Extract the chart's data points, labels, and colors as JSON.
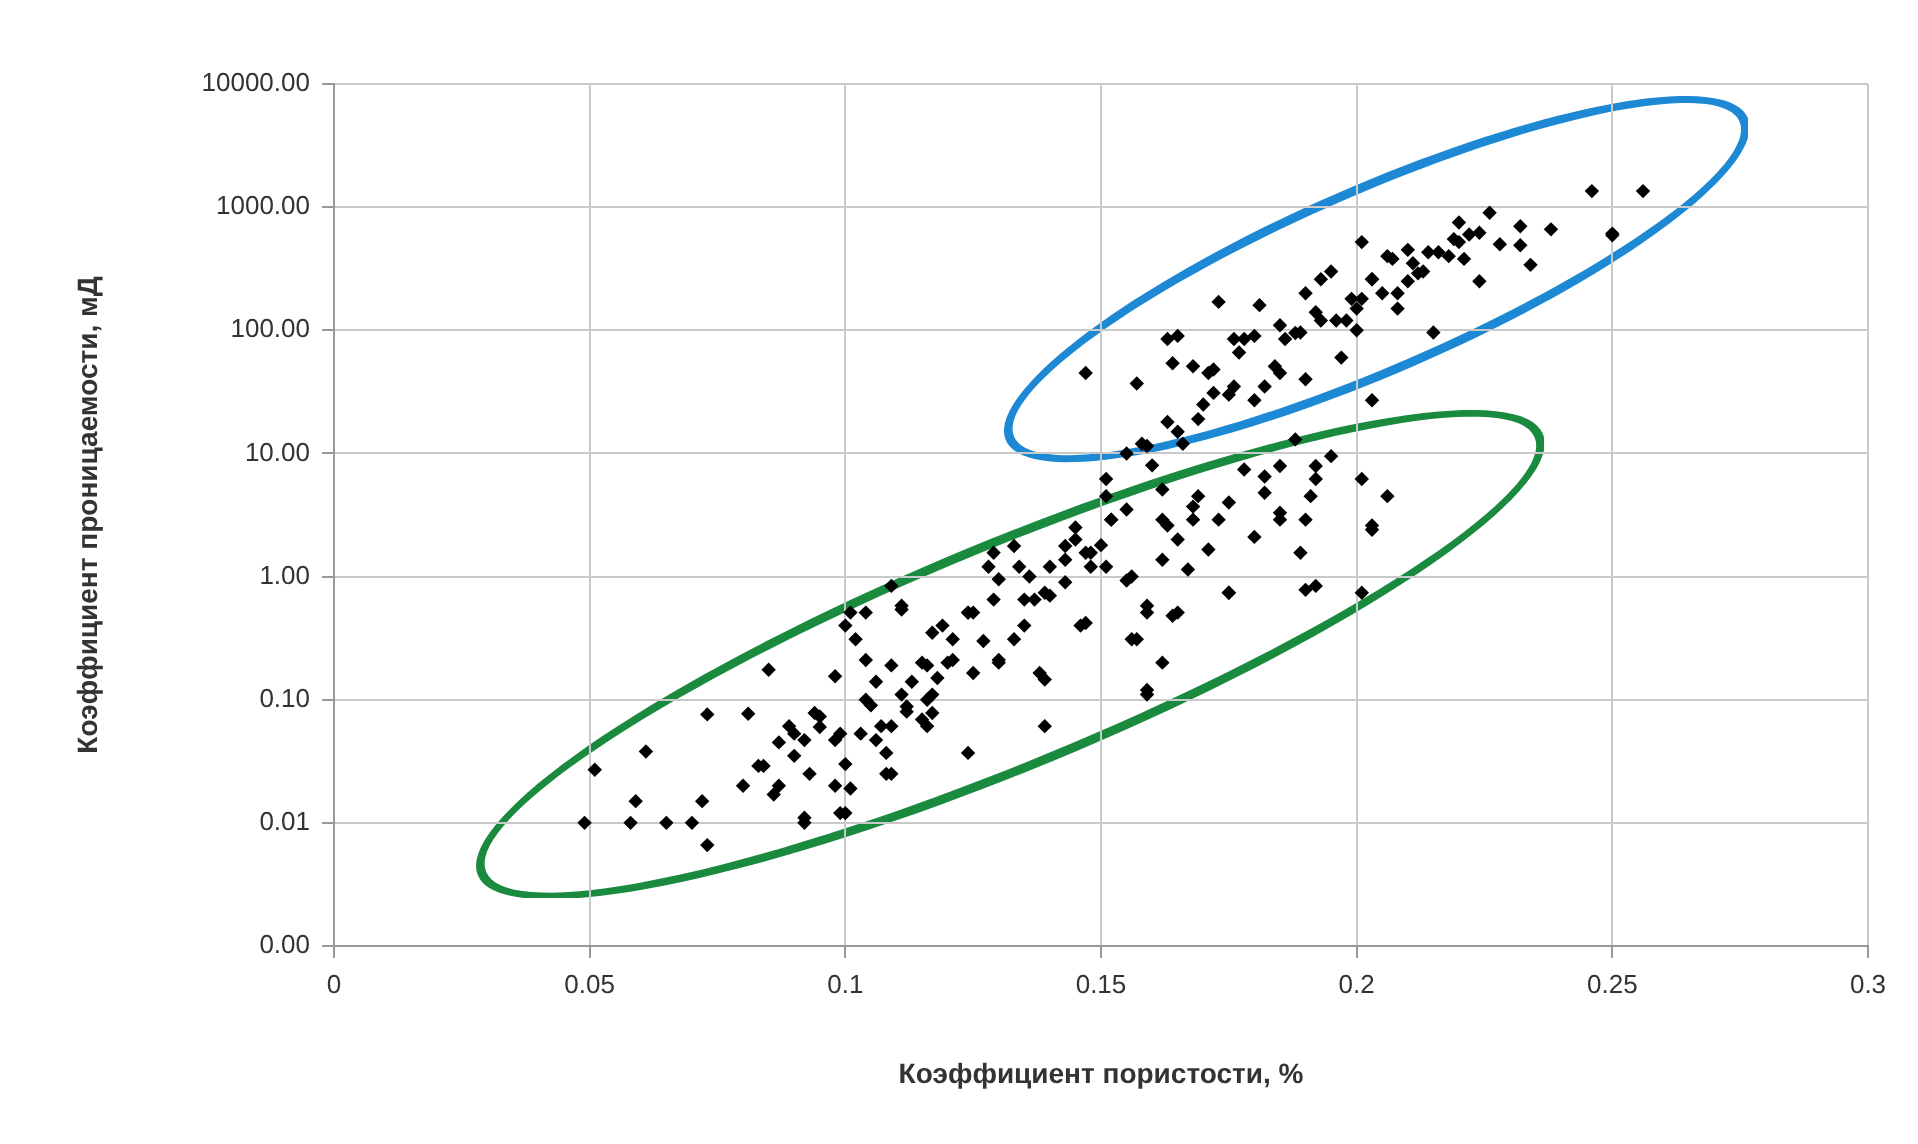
{
  "chart_data": {
    "type": "scatter",
    "xlabel": "Коэффициент пористости, %",
    "ylabel": "Коэффициент проницаемости, мД",
    "xlim": [
      0,
      0.3
    ],
    "xticks": [
      0,
      0.05,
      0.1,
      0.15,
      0.2,
      0.25,
      0.3
    ],
    "ylim": [
      0.001,
      10000
    ],
    "yticks": [
      {
        "value": 0.001,
        "label": "0.00"
      },
      {
        "value": 0.01,
        "label": "0.01"
      },
      {
        "value": 0.1,
        "label": "0.10"
      },
      {
        "value": 1,
        "label": "1.00"
      },
      {
        "value": 10,
        "label": "10.00"
      },
      {
        "value": 100,
        "label": "100.00"
      },
      {
        "value": 1000,
        "label": "1000.00"
      },
      {
        "value": 10000,
        "label": "10000.00"
      }
    ],
    "log": "y",
    "grid": true,
    "marker": "diamond",
    "series": [
      {
        "color": "#000000",
        "x": [
          0.051,
          0.049,
          0.059,
          0.058,
          0.061,
          0.065,
          0.07,
          0.072,
          0.073,
          0.073,
          0.081,
          0.085,
          0.08,
          0.086,
          0.084,
          0.092,
          0.09,
          0.095,
          0.099,
          0.101,
          0.1,
          0.104,
          0.111,
          0.109,
          0.104,
          0.106,
          0.098,
          0.092,
          0.098,
          0.103,
          0.108,
          0.109,
          0.116,
          0.119,
          0.124,
          0.121,
          0.124,
          0.116,
          0.113,
          0.147,
          0.157,
          0.164,
          0.165,
          0.158,
          0.163,
          0.169,
          0.172,
          0.177,
          0.182,
          0.188,
          0.188,
          0.151,
          0.151,
          0.162,
          0.169,
          0.175,
          0.182,
          0.185,
          0.191,
          0.152,
          0.147,
          0.148,
          0.156,
          0.162,
          0.165,
          0.167,
          0.171,
          0.175,
          0.18,
          0.19,
          0.164,
          0.159,
          0.157,
          0.162,
          0.159,
          0.147,
          0.137,
          0.13,
          0.129,
          0.133,
          0.125,
          0.133,
          0.139,
          0.139,
          0.117,
          0.111,
          0.111,
          0.117,
          0.107,
          0.101,
          0.143,
          0.256,
          0.246,
          0.25,
          0.238,
          0.234,
          0.226,
          0.232,
          0.22,
          0.216,
          0.211,
          0.206,
          0.201,
          0.203,
          0.199,
          0.215,
          0.193,
          0.192,
          0.181,
          0.173,
          0.176,
          0.186,
          0.184,
          0.171,
          0.18,
          0.203,
          0.195,
          0.201,
          0.206,
          0.203,
          0.192,
          0.182,
          0.19,
          0.185,
          0.189,
          0.192,
          0.201,
          0.168,
          0.178,
          0.185,
          0.19,
          0.195,
          0.2,
          0.205,
          0.21,
          0.213,
          0.218,
          0.222,
          0.22,
          0.2,
          0.196,
          0.185,
          0.18,
          0.21,
          0.228,
          0.224,
          0.208,
          0.197,
          0.19,
          0.175,
          0.17,
          0.16,
          0.155,
          0.166,
          0.143,
          0.14,
          0.135,
          0.13,
          0.127,
          0.12,
          0.118,
          0.115,
          0.112,
          0.105,
          0.095,
          0.09,
          0.1,
          0.093,
          0.087,
          0.145,
          0.15,
          0.155,
          0.14,
          0.136,
          0.089,
          0.094,
          0.083,
          0.087,
          0.099,
          0.106,
          0.108,
          0.112,
          0.116,
          0.121,
          0.124,
          0.129,
          0.128,
          0.134,
          0.135,
          0.139,
          0.143,
          0.148,
          0.152,
          0.155,
          0.162,
          0.163,
          0.168,
          0.173,
          0.175,
          0.165,
          0.159,
          0.156,
          0.146,
          0.13,
          0.125,
          0.117,
          0.109,
          0.104,
          0.102,
          0.109,
          0.115,
          0.098,
          0.092,
          0.1,
          0.138,
          0.145,
          0.151,
          0.159,
          0.219,
          0.214,
          0.207,
          0.203,
          0.201,
          0.198,
          0.193,
          0.189,
          0.178,
          0.185,
          0.176,
          0.172,
          0.165,
          0.159,
          0.163,
          0.168,
          0.208,
          0.212,
          0.221,
          0.224,
          0.232,
          0.25,
          0.192,
          0.203
        ],
        "values": [
          0.027,
          0.01,
          0.015,
          0.01,
          0.038,
          0.01,
          0.01,
          0.015,
          0.0066,
          0.076,
          0.077,
          0.175,
          0.02,
          0.017,
          0.029,
          0.01,
          0.053,
          0.073,
          0.012,
          0.019,
          0.4,
          0.51,
          0.54,
          0.84,
          0.21,
          0.14,
          0.155,
          0.047,
          0.047,
          0.053,
          0.037,
          0.025,
          0.061,
          0.4,
          0.51,
          0.21,
          0.037,
          0.1,
          0.14,
          45,
          37,
          54,
          90,
          12,
          18,
          19,
          48,
          66,
          35,
          95,
          13,
          6.2,
          4.5,
          5.1,
          4.5,
          4,
          6.5,
          3.3,
          4.5,
          2.9,
          1.56,
          1.2,
          1.0,
          2.9,
          2.0,
          1.14,
          1.66,
          0.74,
          2.1,
          0.78,
          0.48,
          0.58,
          0.31,
          0.2,
          0.12,
          0.42,
          0.65,
          0.95,
          1.56,
          1.77,
          0.51,
          0.31,
          0.146,
          0.061,
          0.35,
          0.58,
          0.11,
          0.078,
          0.061,
          0.51,
          1.77,
          1350,
          1350,
          610,
          660,
          340,
          900,
          700,
          520,
          430,
          350,
          400,
          520,
          260,
          180,
          96,
          260,
          140,
          160,
          170,
          85,
          85,
          51,
          45,
          27,
          27,
          9.5,
          6.2,
          4.5,
          2.4,
          6.2,
          4.8,
          2.9,
          2.9,
          1.56,
          0.84,
          0.74,
          2.9,
          7.4,
          7.9,
          200,
          300,
          150,
          200,
          250,
          300,
          400,
          600,
          750,
          100,
          120,
          110,
          90,
          450,
          500,
          250,
          150,
          60,
          40,
          30,
          25,
          8,
          10,
          12,
          0.9,
          0.7,
          0.4,
          0.2,
          0.3,
          0.2,
          0.15,
          0.2,
          0.08,
          0.09,
          0.06,
          0.035,
          0.03,
          0.025,
          0.045,
          2.5,
          1.8,
          3.5,
          1.2,
          1.0,
          0.061,
          0.078,
          0.029,
          0.02,
          0.053,
          0.047,
          0.025,
          0.088,
          0.19,
          0.31,
          0.51,
          0.65,
          1.2,
          1.2,
          0.65,
          0.74,
          1.37,
          1.56,
          2.9,
          0.93,
          1.37,
          2.6,
          3.7,
          2.9,
          0.74,
          0.51,
          0.11,
          0.31,
          0.4,
          0.21,
          0.165,
          0.11,
          0.061,
          0.1,
          0.31,
          0.19,
          0.069,
          0.02,
          0.011,
          0.012,
          0.165,
          2.0,
          1.2,
          0.51,
          550,
          430,
          380,
          260,
          180,
          120,
          120,
          96,
          85,
          45,
          35,
          31,
          15,
          11.5,
          85,
          51,
          200,
          290,
          380,
          620,
          490,
          590,
          7.9,
          2.6
        ]
      }
    ]
  }
}
